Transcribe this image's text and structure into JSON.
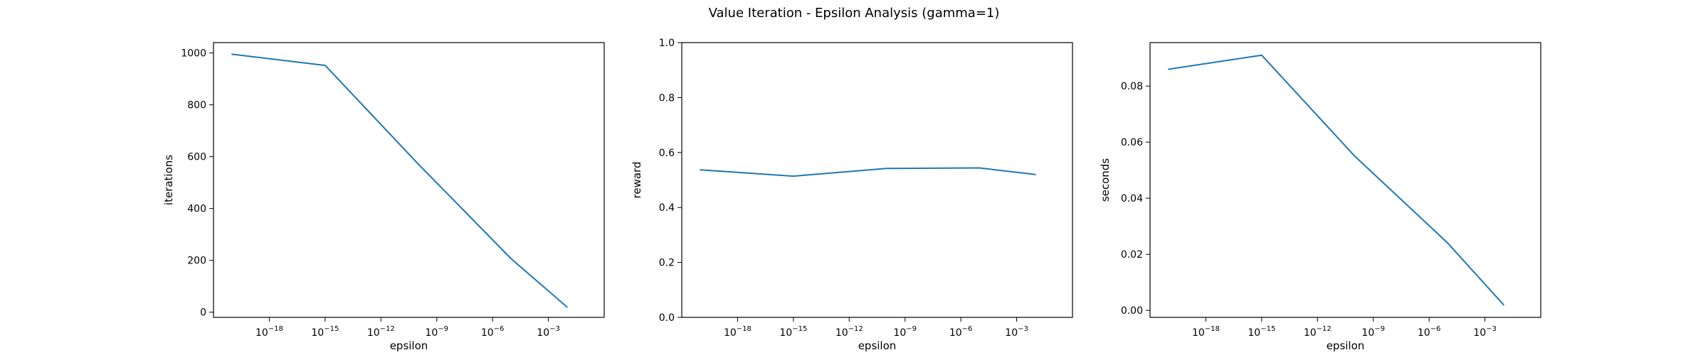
{
  "figure": {
    "title": "Value Iteration - Epsilon Analysis (gamma=1)"
  },
  "colors": {
    "line": "#1f77b4",
    "axes": "#000000",
    "background": "#ffffff"
  },
  "chart_data": [
    {
      "type": "line",
      "xscale": "log",
      "xlabel": "epsilon",
      "ylabel": "iterations",
      "xlim": [
        1e-21,
        1
      ],
      "ylim": [
        -20,
        1040
      ],
      "x_ticks": [
        1e-18,
        1e-15,
        1e-12,
        1e-09,
        1e-06,
        0.001
      ],
      "x_tick_labels": [
        {
          "base": "10",
          "exp": "−18"
        },
        {
          "base": "10",
          "exp": "−15"
        },
        {
          "base": "10",
          "exp": "−12"
        },
        {
          "base": "10",
          "exp": "−9"
        },
        {
          "base": "10",
          "exp": "−6"
        },
        {
          "base": "10",
          "exp": "−3"
        }
      ],
      "y_ticks": [
        0,
        200,
        400,
        600,
        800,
        1000
      ],
      "y_tick_labels": [
        "0",
        "200",
        "400",
        "600",
        "800",
        "1000"
      ],
      "x": [
        1e-20,
        1e-15,
        1e-10,
        1e-05,
        0.01
      ],
      "y": [
        995,
        952,
        572,
        206,
        20
      ],
      "grid": false
    },
    {
      "type": "line",
      "xscale": "log",
      "xlabel": "epsilon",
      "ylabel": "reward",
      "xlim": [
        1e-21,
        1
      ],
      "ylim": [
        0,
        1
      ],
      "x_ticks": [
        1e-18,
        1e-15,
        1e-12,
        1e-09,
        1e-06,
        0.001
      ],
      "x_tick_labels": [
        {
          "base": "10",
          "exp": "−18"
        },
        {
          "base": "10",
          "exp": "−15"
        },
        {
          "base": "10",
          "exp": "−12"
        },
        {
          "base": "10",
          "exp": "−9"
        },
        {
          "base": "10",
          "exp": "−6"
        },
        {
          "base": "10",
          "exp": "−3"
        }
      ],
      "y_ticks": [
        0,
        0.2,
        0.4,
        0.6,
        0.8,
        1.0
      ],
      "y_tick_labels": [
        "0.0",
        "0.2",
        "0.4",
        "0.6",
        "0.8",
        "1.0"
      ],
      "x": [
        1e-20,
        1e-15,
        1e-10,
        1e-05,
        0.01
      ],
      "y": [
        0.537,
        0.514,
        0.542,
        0.544,
        0.52
      ],
      "grid": false
    },
    {
      "type": "line",
      "xscale": "log",
      "xlabel": "epsilon",
      "ylabel": "seconds",
      "xlim": [
        1e-21,
        1
      ],
      "ylim": [
        -0.0025,
        0.0955
      ],
      "x_ticks": [
        1e-18,
        1e-15,
        1e-12,
        1e-09,
        1e-06,
        0.001
      ],
      "x_tick_labels": [
        {
          "base": "10",
          "exp": "−18"
        },
        {
          "base": "10",
          "exp": "−15"
        },
        {
          "base": "10",
          "exp": "−12"
        },
        {
          "base": "10",
          "exp": "−9"
        },
        {
          "base": "10",
          "exp": "−6"
        },
        {
          "base": "10",
          "exp": "−3"
        }
      ],
      "y_ticks": [
        0,
        0.02,
        0.04,
        0.06,
        0.08
      ],
      "y_tick_labels": [
        "0.00",
        "0.02",
        "0.04",
        "0.06",
        "0.08"
      ],
      "x": [
        1e-20,
        1e-15,
        1e-10,
        1e-05,
        0.01
      ],
      "y": [
        0.086,
        0.091,
        0.055,
        0.024,
        0.002
      ],
      "grid": false
    }
  ]
}
